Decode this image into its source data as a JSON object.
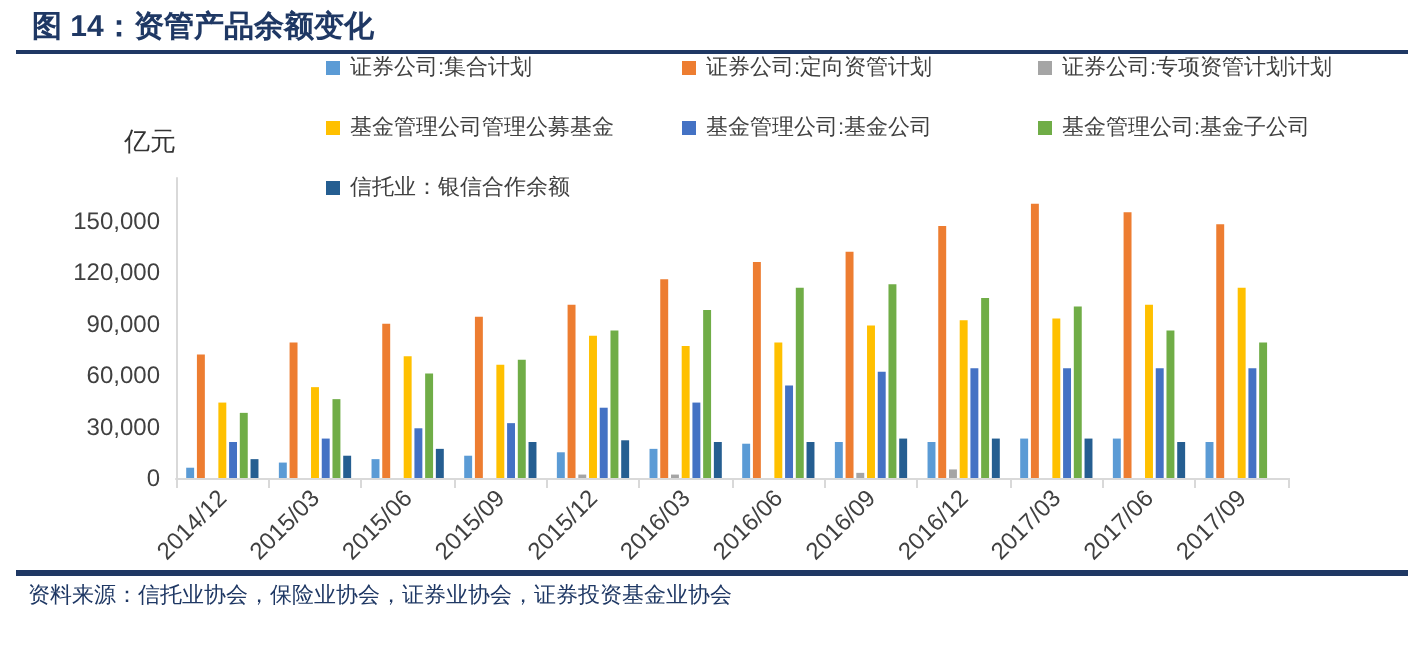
{
  "chart_data": {
    "type": "bar",
    "title": "图 14：资管产品余额变化",
    "ylabel": "亿元",
    "annotations": [
      "资料来源：信托业协会，保险业协会，证券业协会，证券投资基金业协会"
    ],
    "categories": [
      "2014/12",
      "2015/03",
      "2015/06",
      "2015/09",
      "2015/12",
      "2016/03",
      "2016/06",
      "2016/09",
      "2016/12",
      "2017/03",
      "2017/06",
      "2017/09"
    ],
    "series": [
      {
        "name": "证券公司:集合计划",
        "color": "#5b9bd5",
        "values": [
          6000,
          9000,
          11000,
          13000,
          15000,
          17000,
          20000,
          21000,
          21000,
          23000,
          23000,
          21000
        ]
      },
      {
        "name": "证券公司:定向资管计划",
        "color": "#ed7d31",
        "values": [
          72000,
          79000,
          90000,
          94000,
          101000,
          116000,
          126000,
          132000,
          147000,
          160000,
          155000,
          148000
        ]
      },
      {
        "name": "证券公司:专项资管计划计划",
        "color": "#a5a5a5",
        "values": [
          0,
          0,
          0,
          0,
          2000,
          2000,
          null,
          3000,
          5000,
          null,
          null,
          null
        ]
      },
      {
        "name": "基金管理公司管理公募基金",
        "color": "#ffc000",
        "values": [
          44000,
          53000,
          71000,
          66000,
          83000,
          77000,
          79000,
          89000,
          92000,
          93000,
          101000,
          111000
        ]
      },
      {
        "name": "基金管理公司:基金公司",
        "color": "#4472c4",
        "values": [
          21000,
          23000,
          29000,
          32000,
          41000,
          44000,
          54000,
          62000,
          64000,
          64000,
          64000,
          64000
        ]
      },
      {
        "name": "基金管理公司:基金子公司",
        "color": "#70ad47",
        "values": [
          38000,
          46000,
          61000,
          69000,
          86000,
          98000,
          111000,
          113000,
          105000,
          100000,
          86000,
          79000
        ]
      },
      {
        "name": "信托业：银信合作余额",
        "color": "#255e91",
        "values": [
          11000,
          13000,
          17000,
          21000,
          22000,
          21000,
          21000,
          23000,
          23000,
          23000,
          21000,
          null
        ]
      }
    ],
    "ylim": [
      0,
      175000
    ],
    "yticks": [
      0,
      {
        "value": 30000,
        "label": "30,000"
      },
      {
        "value": 60000,
        "label": "60,000"
      },
      {
        "value": 90000,
        "label": "90,000"
      },
      {
        "value": 120000,
        "label": "120,000"
      },
      {
        "value": 150000,
        "label": "150,000"
      }
    ],
    "grid": false,
    "legend": "top"
  }
}
